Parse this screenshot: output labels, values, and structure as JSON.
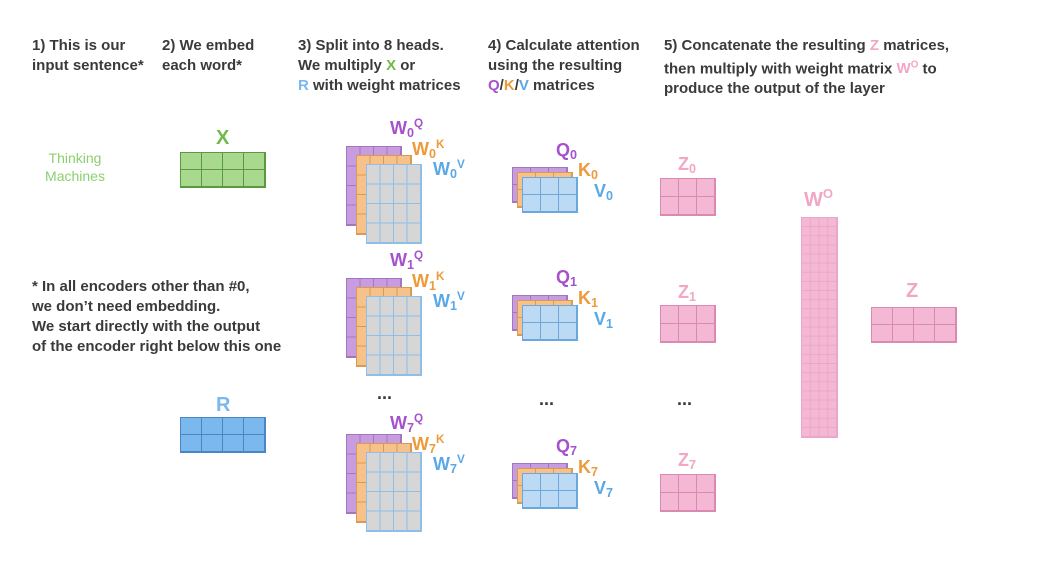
{
  "steps": [
    {
      "lines": [
        "1) This is our",
        "input sentence*"
      ]
    },
    {
      "lines": [
        "2) We embed",
        "each word*"
      ]
    },
    {
      "lines": [
        "3) Split into 8 heads.",
        "We multiply X or",
        "R with weight matrices"
      ]
    },
    {
      "lines": [
        "4) Calculate attention",
        "using the resulting",
        "Q/K/V matrices"
      ]
    },
    {
      "lines": [
        "5) Concatenate the resulting Z matrices,",
        "then multiply with weight matrix WO to",
        "produce the output of the layer"
      ]
    }
  ],
  "note_lines": [
    "* In all encoders other than #0,",
    "we don’t need embedding.",
    "We start directly with the output",
    "of the encoder right below this one"
  ],
  "input_words": [
    "Thinking",
    "Machines"
  ],
  "labels": {
    "x": "X",
    "r": "R",
    "w": "W",
    "q": "Q",
    "k": "K",
    "v": "V",
    "z": "Z",
    "o": "O",
    "slash": "/",
    "dots": "..."
  },
  "heads": [
    "0",
    "1",
    "7"
  ],
  "colors": {
    "green": "#a9d88f",
    "green_text": "#70b94c",
    "blue": "#7ab8ee",
    "purple": "#c89ce0",
    "orange": "#f7c28a",
    "light_blue": "#bddaf5",
    "grey": "#d6d6d6",
    "pink": "#f5b8d4",
    "pink_text": "#f2a6c6"
  }
}
